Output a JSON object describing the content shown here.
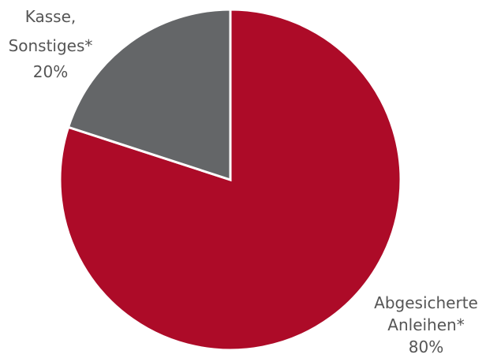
{
  "chart_data": {
    "type": "pie",
    "start_angle_deg": 0,
    "direction": "clockwise",
    "slices": [
      {
        "label_lines": [
          "Abgesicherte",
          "Anleihen*"
        ],
        "value": 80,
        "value_label": "80%",
        "color": "#ad0b28"
      },
      {
        "label_lines": [
          "Kasse,",
          "Sonstiges*"
        ],
        "value": 20,
        "value_label": "20%",
        "color": "#646668"
      }
    ],
    "legend": "none",
    "border_color": "#ffffff"
  }
}
